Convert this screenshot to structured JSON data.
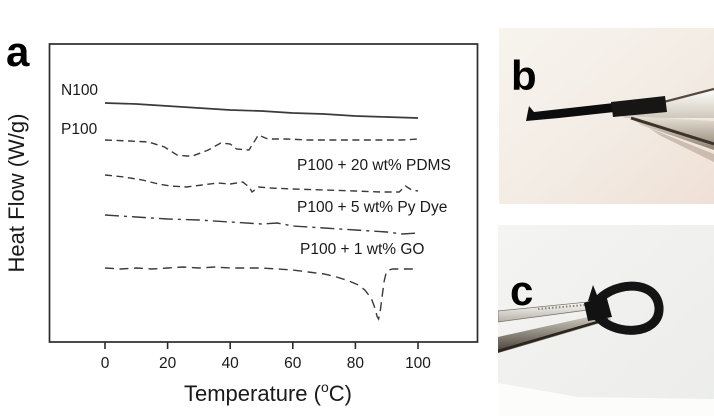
{
  "panel_a": {
    "letter": "a"
  },
  "panel_b": {
    "letter": "b"
  },
  "panel_c": {
    "letter": "c"
  },
  "chart_data": {
    "type": "line",
    "title": "",
    "xlabel_main": "Temperature (",
    "xlabel_sup": "o",
    "xlabel_end": "C)",
    "ylabel": "Heat Flow (W/g)",
    "x_ticks": [
      0,
      20,
      40,
      60,
      80,
      100
    ],
    "xlim": [
      -18,
      119
    ],
    "y_units": "arbitrary units; curves vertically offset for clarity, no y-axis ticks shown",
    "grid": false,
    "legend_position": "inline labels on plot",
    "line_color": "#3a3a3a",
    "series": [
      {
        "id": "n100",
        "name": "N100",
        "style": "solid",
        "points": [
          [
            0,
            239
          ],
          [
            10,
            238
          ],
          [
            20,
            236
          ],
          [
            30,
            234
          ],
          [
            40,
            232
          ],
          [
            50,
            231
          ],
          [
            60,
            229
          ],
          [
            70,
            228
          ],
          [
            80,
            226
          ],
          [
            90,
            225
          ],
          [
            100,
            224
          ]
        ]
      },
      {
        "id": "p100",
        "name": "P100",
        "style": "dashed",
        "points": [
          [
            0,
            202
          ],
          [
            8,
            201
          ],
          [
            14,
            200
          ],
          [
            19,
            195
          ],
          [
            23,
            187
          ],
          [
            26,
            186
          ],
          [
            28,
            186
          ],
          [
            33,
            192
          ],
          [
            37,
            199
          ],
          [
            40,
            198
          ],
          [
            42,
            193
          ],
          [
            46,
            192
          ],
          [
            49,
            207
          ],
          [
            52,
            203
          ],
          [
            58,
            203
          ],
          [
            65,
            202
          ],
          [
            75,
            202
          ],
          [
            85,
            202
          ],
          [
            95,
            202
          ],
          [
            100,
            203
          ]
        ]
      },
      {
        "id": "pdms",
        "name": "P100 + 20 wt% PDMS",
        "style": "dashed",
        "points": [
          [
            0,
            167
          ],
          [
            6,
            165
          ],
          [
            12,
            162
          ],
          [
            17,
            158
          ],
          [
            21,
            156
          ],
          [
            26,
            155
          ],
          [
            31,
            157
          ],
          [
            36,
            159
          ],
          [
            40,
            158
          ],
          [
            44,
            160
          ],
          [
            46,
            155
          ],
          [
            47,
            150
          ],
          [
            49,
            155
          ],
          [
            53,
            154
          ],
          [
            60,
            153
          ],
          [
            70,
            152
          ],
          [
            80,
            151
          ],
          [
            88,
            150
          ],
          [
            94,
            150
          ],
          [
            96,
            156
          ],
          [
            98,
            152
          ],
          [
            100,
            151
          ]
        ]
      },
      {
        "id": "pydye",
        "name": "P100 + 5 wt% Py Dye",
        "style": "dashdot",
        "points": [
          [
            0,
            127
          ],
          [
            10,
            125
          ],
          [
            20,
            123
          ],
          [
            30,
            122
          ],
          [
            40,
            120
          ],
          [
            50,
            118
          ],
          [
            55,
            119
          ],
          [
            60,
            116
          ],
          [
            70,
            114
          ],
          [
            80,
            112
          ],
          [
            90,
            110
          ],
          [
            95,
            108
          ],
          [
            100,
            109
          ]
        ]
      },
      {
        "id": "go",
        "name": "P100 + 1 wt% GO",
        "style": "dashed_long",
        "points": [
          [
            0,
            74
          ],
          [
            5,
            73
          ],
          [
            10,
            74
          ],
          [
            15,
            73
          ],
          [
            20,
            74
          ],
          [
            25,
            75
          ],
          [
            30,
            74
          ],
          [
            35,
            75
          ],
          [
            40,
            74
          ],
          [
            45,
            74
          ],
          [
            50,
            74
          ],
          [
            55,
            73
          ],
          [
            60,
            72
          ],
          [
            65,
            70
          ],
          [
            70,
            68
          ],
          [
            74,
            65
          ],
          [
            78,
            61
          ],
          [
            81,
            57
          ],
          [
            83,
            52
          ],
          [
            85,
            44
          ],
          [
            86,
            36
          ],
          [
            87,
            25
          ],
          [
            87.4,
            23
          ],
          [
            88,
            32
          ],
          [
            88.6,
            47
          ],
          [
            89.2,
            61
          ],
          [
            89.8,
            69
          ],
          [
            90.5,
            72
          ],
          [
            92,
            73
          ],
          [
            95,
            73
          ],
          [
            100,
            73
          ]
        ]
      }
    ]
  }
}
